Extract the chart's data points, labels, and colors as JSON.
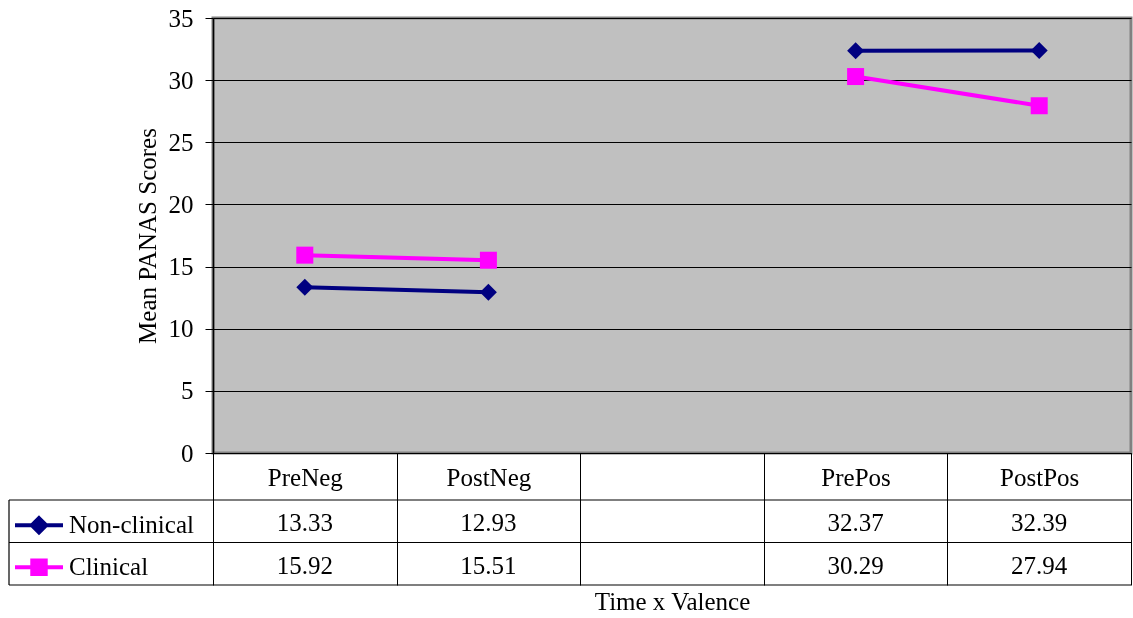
{
  "chart_data": {
    "type": "line",
    "xlabel": "Time x Valence",
    "ylabel": "Mean PANAS Scores",
    "categories": [
      "PreNeg",
      "PostNeg",
      null,
      "PrePos",
      "PostPos"
    ],
    "series": [
      {
        "name": "Non-clinical",
        "color": "#000080",
        "marker": "diamond",
        "values": [
          13.33,
          12.93,
          null,
          32.37,
          32.39
        ]
      },
      {
        "name": "Clinical",
        "color": "#ff00ff",
        "marker": "square",
        "values": [
          15.92,
          15.51,
          null,
          30.29,
          27.94
        ]
      }
    ],
    "ylim": [
      0,
      35
    ],
    "yticks": [
      0,
      5,
      10,
      15,
      20,
      25,
      30,
      35
    ],
    "grid": "y",
    "legend": "bottom left",
    "data_labels": true,
    "line_style": "solid"
  }
}
